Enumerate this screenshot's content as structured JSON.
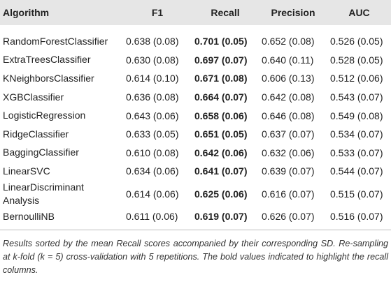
{
  "table": {
    "columns": [
      "Algorithm",
      "F1",
      "Recall",
      "Precision",
      "AUC"
    ],
    "rows": [
      [
        "RandomForestClassifier",
        "0.638 (0.08)",
        "0.701 (0.05)",
        "0.652 (0.08)",
        "0.526 (0.05)"
      ],
      [
        "ExtraTreesClassifier",
        "0.630 (0.08)",
        "0.697 (0.07)",
        "0.640 (0.11)",
        "0.528 (0.05)"
      ],
      [
        "KNeighborsClassifier",
        "0.614 (0.10)",
        "0.671 (0.08)",
        "0.606 (0.13)",
        "0.512 (0.06)"
      ],
      [
        "XGBClassifier",
        "0.636 (0.08)",
        "0.664 (0.07)",
        "0.642 (0.08)",
        "0.543 (0.07)"
      ],
      [
        "LogisticRegression",
        "0.643 (0.06)",
        "0.658 (0.06)",
        "0.646 (0.08)",
        "0.549 (0.08)"
      ],
      [
        "RidgeClassifier",
        "0.633 (0.05)",
        "0.651 (0.05)",
        "0.637 (0.07)",
        "0.534 (0.07)"
      ],
      [
        "BaggingClassifier",
        "0.610 (0.08)",
        "0.642 (0.06)",
        "0.632 (0.06)",
        "0.533 (0.07)"
      ],
      [
        "LinearSVC",
        "0.634 (0.06)",
        "0.641 (0.07)",
        "0.639 (0.07)",
        "0.544 (0.07)"
      ],
      [
        "LinearDiscriminant Analysis",
        "0.614 (0.06)",
        "0.625 (0.06)",
        "0.616 (0.07)",
        "0.515 (0.07)"
      ],
      [
        "BernoulliNB",
        "0.611 (0.06)",
        "0.619 (0.07)",
        "0.626 (0.07)",
        "0.516 (0.07)"
      ]
    ],
    "caption": "Results sorted by the mean Recall scores accompanied by their corresponding SD. Re-sampling at k-fold (k = 5) cross-validation with 5 repetitions. The bold values indicated to highlight the recall columns."
  }
}
